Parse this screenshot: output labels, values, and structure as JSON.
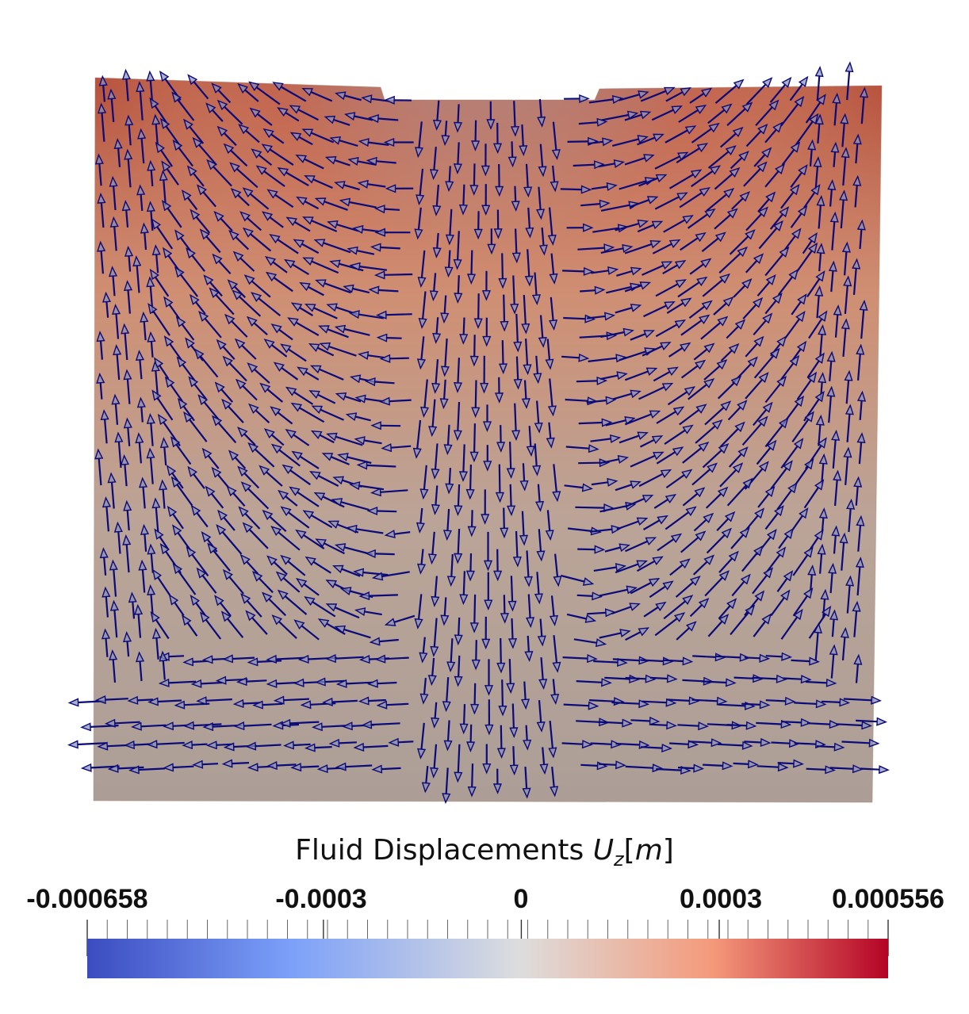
{
  "colorbar": {
    "title_text": "Fluid Displacements ",
    "title_symbol": "U",
    "title_subscript": "z",
    "title_unit_open": "[",
    "title_unit": "m",
    "title_unit_close": "]",
    "min": -0.000658,
    "max": 0.000556,
    "tick_labels": [
      "-0.000658",
      "-0.0003",
      "0",
      "0.0003",
      "0.000556"
    ],
    "tick_values": [
      -0.000658,
      -0.0003,
      0,
      0.0003,
      0.000556
    ],
    "colormap": "cool-to-warm",
    "color_low": "#3b4cc0",
    "color_mid": "#dddddd",
    "color_high": "#b40426"
  },
  "field": {
    "arrow_color": "#0a0a78",
    "description_name": "displacement-vectors"
  }
}
